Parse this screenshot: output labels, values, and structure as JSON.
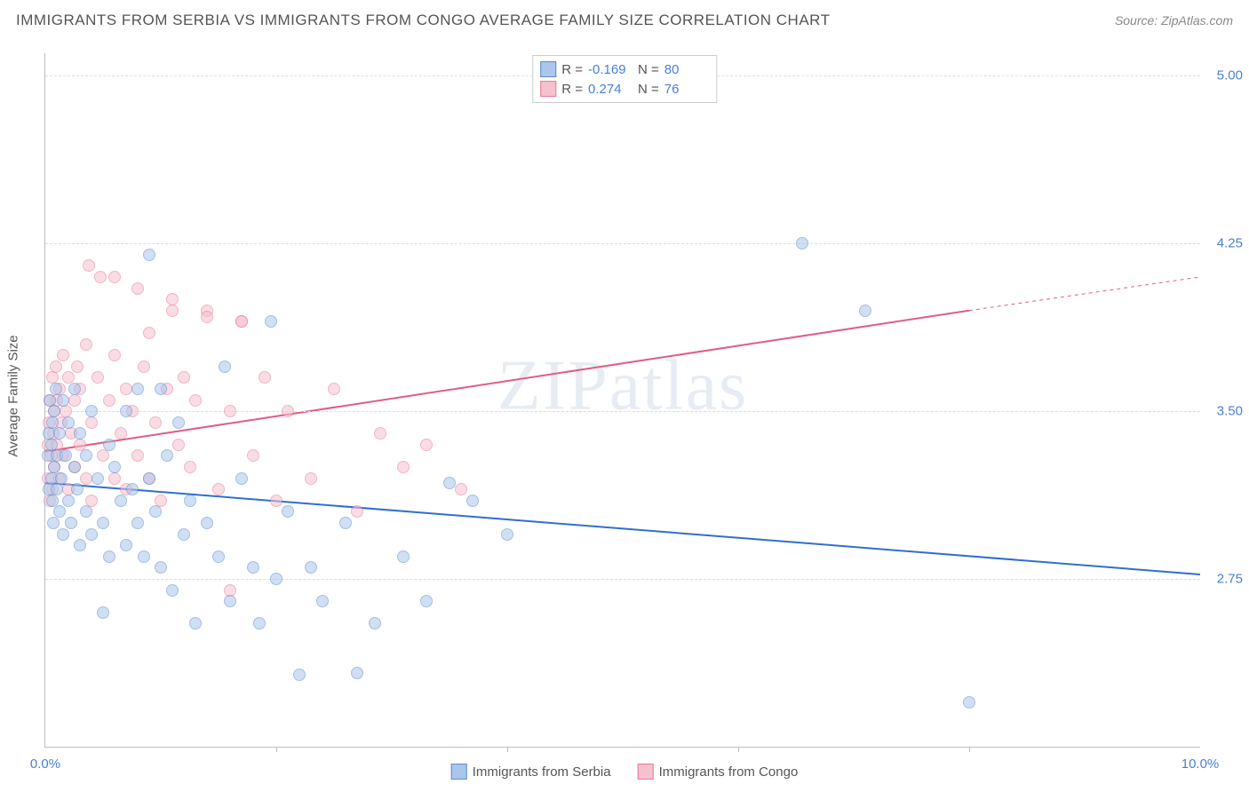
{
  "title": "IMMIGRANTS FROM SERBIA VS IMMIGRANTS FROM CONGO AVERAGE FAMILY SIZE CORRELATION CHART",
  "source": "Source: ZipAtlas.com",
  "watermark": "ZIPatlas",
  "chart": {
    "type": "scatter",
    "ylabel": "Average Family Size",
    "xlim": [
      0.0,
      10.0
    ],
    "ylim": [
      2.0,
      5.1
    ],
    "x_tick_labels": {
      "0": "0.0%",
      "10": "10.0%"
    },
    "x_minor_ticks": [
      2.0,
      4.0,
      6.0,
      8.0
    ],
    "y_gridlines": [
      2.75,
      3.5,
      4.25,
      5.0
    ],
    "y_tick_labels": {
      "2.75": "2.75",
      "3.50": "3.50",
      "4.25": "4.25",
      "5.00": "5.00"
    },
    "background_color": "#ffffff",
    "grid_color": "#dddddd",
    "axis_color": "#bbbbbb",
    "tick_label_color": "#4a7fd6",
    "title_color": "#555555",
    "marker_radius": 7,
    "marker_opacity": 0.55,
    "series": {
      "serbia": {
        "label": "Immigigrants from Serbia",
        "fill": "#aac6ea",
        "stroke": "#5a8bd0",
        "line_color": "#2f6fd0",
        "line_width": 2,
        "R": "-0.169",
        "N": "80",
        "regression": {
          "x1": 0.0,
          "y1": 3.18,
          "x2": 10.0,
          "y2": 2.77
        },
        "points": [
          [
            0.02,
            3.3
          ],
          [
            0.03,
            3.15
          ],
          [
            0.03,
            3.4
          ],
          [
            0.04,
            3.55
          ],
          [
            0.05,
            3.2
          ],
          [
            0.05,
            3.35
          ],
          [
            0.06,
            3.1
          ],
          [
            0.06,
            3.45
          ],
          [
            0.07,
            3.0
          ],
          [
            0.08,
            3.25
          ],
          [
            0.08,
            3.5
          ],
          [
            0.09,
            3.6
          ],
          [
            0.1,
            3.15
          ],
          [
            0.1,
            3.3
          ],
          [
            0.12,
            3.05
          ],
          [
            0.12,
            3.4
          ],
          [
            0.14,
            3.2
          ],
          [
            0.15,
            3.55
          ],
          [
            0.15,
            2.95
          ],
          [
            0.18,
            3.3
          ],
          [
            0.2,
            3.1
          ],
          [
            0.2,
            3.45
          ],
          [
            0.22,
            3.0
          ],
          [
            0.25,
            3.25
          ],
          [
            0.25,
            3.6
          ],
          [
            0.28,
            3.15
          ],
          [
            0.3,
            3.4
          ],
          [
            0.3,
            2.9
          ],
          [
            0.35,
            3.05
          ],
          [
            0.35,
            3.3
          ],
          [
            0.4,
            3.5
          ],
          [
            0.4,
            2.95
          ],
          [
            0.45,
            3.2
          ],
          [
            0.5,
            3.0
          ],
          [
            0.55,
            3.35
          ],
          [
            0.55,
            2.85
          ],
          [
            0.6,
            3.25
          ],
          [
            0.65,
            3.1
          ],
          [
            0.7,
            3.5
          ],
          [
            0.7,
            2.9
          ],
          [
            0.75,
            3.15
          ],
          [
            0.8,
            3.0
          ],
          [
            0.8,
            3.6
          ],
          [
            0.85,
            2.85
          ],
          [
            0.9,
            3.2
          ],
          [
            0.9,
            4.2
          ],
          [
            0.95,
            3.05
          ],
          [
            1.0,
            3.6
          ],
          [
            1.0,
            2.8
          ],
          [
            1.05,
            3.3
          ],
          [
            1.1,
            2.7
          ],
          [
            1.15,
            3.45
          ],
          [
            1.2,
            2.95
          ],
          [
            1.25,
            3.1
          ],
          [
            1.3,
            2.55
          ],
          [
            1.4,
            3.0
          ],
          [
            1.5,
            2.85
          ],
          [
            1.55,
            3.7
          ],
          [
            1.6,
            2.65
          ],
          [
            1.7,
            3.2
          ],
          [
            1.8,
            2.8
          ],
          [
            1.85,
            2.55
          ],
          [
            1.95,
            3.9
          ],
          [
            2.0,
            2.75
          ],
          [
            2.1,
            3.05
          ],
          [
            2.2,
            2.32
          ],
          [
            2.3,
            2.8
          ],
          [
            2.4,
            2.65
          ],
          [
            2.6,
            3.0
          ],
          [
            2.7,
            2.33
          ],
          [
            2.85,
            2.55
          ],
          [
            3.1,
            2.85
          ],
          [
            3.3,
            2.65
          ],
          [
            3.5,
            3.18
          ],
          [
            3.7,
            3.1
          ],
          [
            4.0,
            2.95
          ],
          [
            6.55,
            4.25
          ],
          [
            7.1,
            3.95
          ],
          [
            8.0,
            2.2
          ],
          [
            0.5,
            2.6
          ]
        ]
      },
      "congo": {
        "label": "Immigrants from Congo",
        "fill": "#f6c1cf",
        "stroke": "#e57a97",
        "line_color": "#e05d84",
        "line_width": 2,
        "R": "0.274",
        "N": "76",
        "regression": {
          "x1": 0.0,
          "y1": 3.32,
          "x2": 8.0,
          "y2": 3.95,
          "x3": 10.0,
          "y3": 4.1
        },
        "points": [
          [
            0.02,
            3.2
          ],
          [
            0.02,
            3.35
          ],
          [
            0.03,
            3.45
          ],
          [
            0.04,
            3.1
          ],
          [
            0.04,
            3.55
          ],
          [
            0.05,
            3.3
          ],
          [
            0.06,
            3.65
          ],
          [
            0.06,
            3.15
          ],
          [
            0.07,
            3.4
          ],
          [
            0.08,
            3.5
          ],
          [
            0.08,
            3.25
          ],
          [
            0.09,
            3.7
          ],
          [
            0.1,
            3.35
          ],
          [
            0.1,
            3.55
          ],
          [
            0.12,
            3.2
          ],
          [
            0.12,
            3.6
          ],
          [
            0.14,
            3.45
          ],
          [
            0.15,
            3.3
          ],
          [
            0.15,
            3.75
          ],
          [
            0.18,
            3.5
          ],
          [
            0.2,
            3.15
          ],
          [
            0.2,
            3.65
          ],
          [
            0.22,
            3.4
          ],
          [
            0.25,
            3.55
          ],
          [
            0.25,
            3.25
          ],
          [
            0.28,
            3.7
          ],
          [
            0.3,
            3.35
          ],
          [
            0.3,
            3.6
          ],
          [
            0.35,
            3.2
          ],
          [
            0.35,
            3.8
          ],
          [
            0.38,
            4.15
          ],
          [
            0.4,
            3.45
          ],
          [
            0.4,
            3.1
          ],
          [
            0.45,
            3.65
          ],
          [
            0.48,
            4.1
          ],
          [
            0.5,
            3.3
          ],
          [
            0.55,
            3.55
          ],
          [
            0.6,
            3.2
          ],
          [
            0.6,
            3.75
          ],
          [
            0.65,
            3.4
          ],
          [
            0.7,
            3.6
          ],
          [
            0.7,
            3.15
          ],
          [
            0.75,
            3.5
          ],
          [
            0.8,
            3.3
          ],
          [
            0.85,
            3.7
          ],
          [
            0.9,
            3.2
          ],
          [
            0.9,
            3.85
          ],
          [
            0.95,
            3.45
          ],
          [
            1.0,
            3.1
          ],
          [
            1.05,
            3.6
          ],
          [
            1.1,
            3.95
          ],
          [
            1.15,
            3.35
          ],
          [
            1.2,
            3.65
          ],
          [
            1.25,
            3.25
          ],
          [
            1.3,
            3.55
          ],
          [
            1.4,
            3.95
          ],
          [
            1.5,
            3.15
          ],
          [
            1.6,
            2.7
          ],
          [
            1.6,
            3.5
          ],
          [
            1.7,
            3.9
          ],
          [
            1.8,
            3.3
          ],
          [
            1.9,
            3.65
          ],
          [
            2.0,
            3.1
          ],
          [
            2.1,
            3.5
          ],
          [
            2.3,
            3.2
          ],
          [
            2.5,
            3.6
          ],
          [
            2.7,
            3.05
          ],
          [
            2.9,
            3.4
          ],
          [
            3.1,
            3.25
          ],
          [
            3.3,
            3.35
          ],
          [
            3.6,
            3.15
          ],
          [
            0.6,
            4.1
          ],
          [
            0.8,
            4.05
          ],
          [
            1.1,
            4.0
          ],
          [
            1.4,
            3.92
          ],
          [
            1.7,
            3.9
          ]
        ]
      }
    }
  },
  "legend_top": {
    "r_label": "R =",
    "n_label": "N ="
  },
  "legend_bottom": {
    "serbia": "Immigrants from Serbia",
    "congo": "Immigrants from Congo"
  }
}
